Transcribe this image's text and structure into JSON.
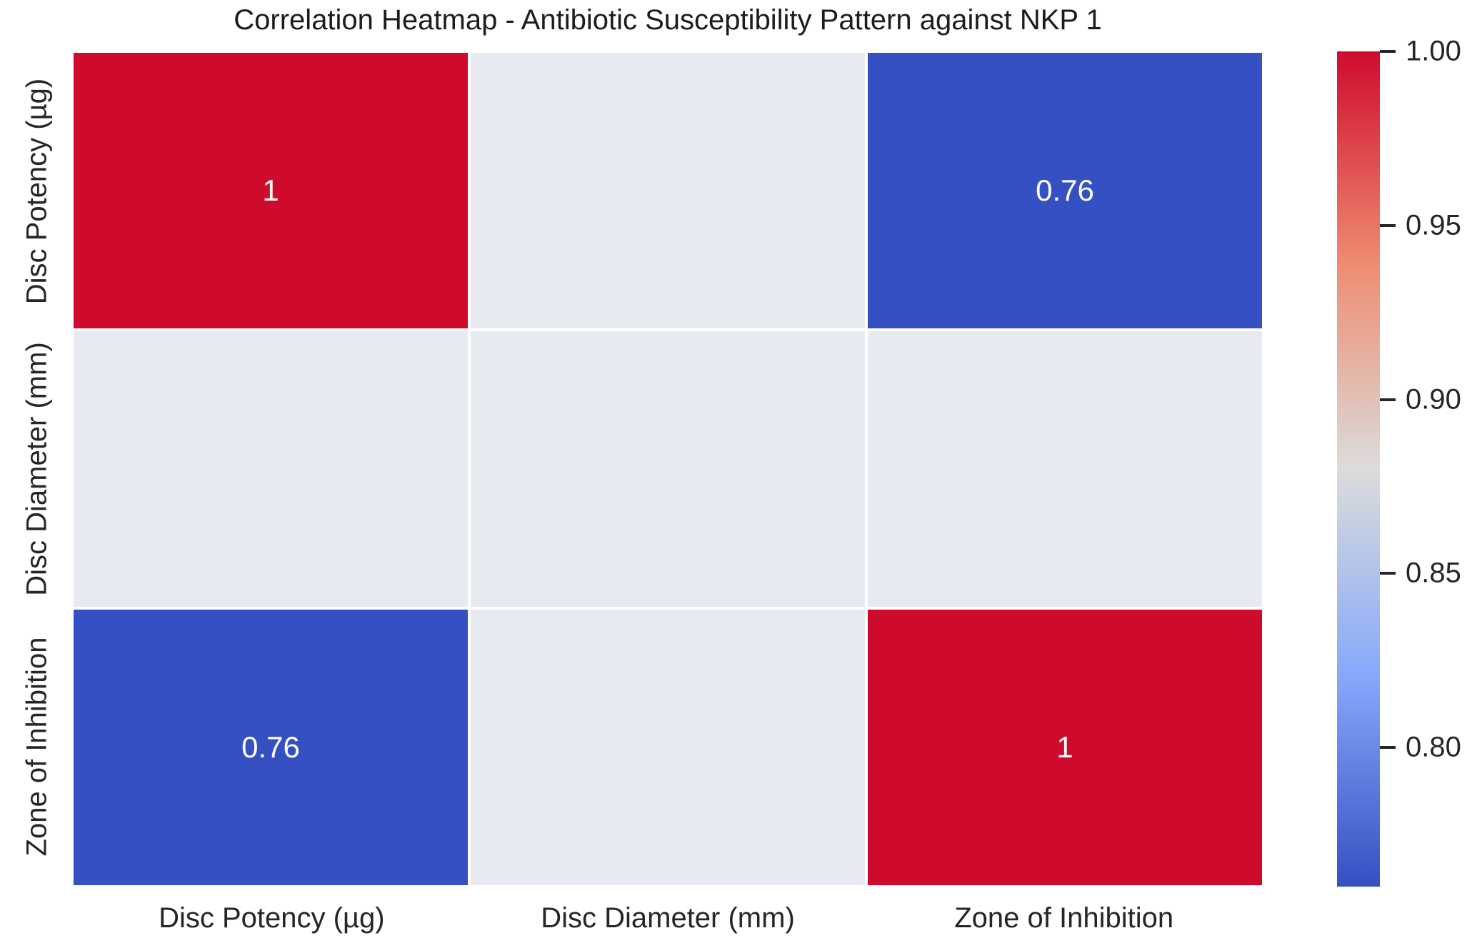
{
  "chart_data": {
    "type": "heatmap",
    "title": "Correlation Heatmap - Antibiotic Susceptibility Pattern against NKP 1",
    "x_categories": [
      "Disc Potency (µg)",
      "Disc Diameter (mm)",
      "Zone of Inhibition"
    ],
    "y_categories": [
      "Disc Potency (µg)",
      "Disc Diameter (mm)",
      "Zone of Inhibition"
    ],
    "matrix": [
      [
        1,
        null,
        0.76
      ],
      [
        null,
        null,
        null
      ],
      [
        0.76,
        null,
        1
      ]
    ],
    "cell_labels": [
      [
        "1",
        "",
        "0.76"
      ],
      [
        "",
        "",
        ""
      ],
      [
        "0.76",
        "",
        "1"
      ]
    ],
    "colormap": "coolwarm",
    "vmin": 0.76,
    "vmax": 1.0,
    "colorbar_ticks": [
      {
        "label": "1.00",
        "value": 1.0
      },
      {
        "label": "0.95",
        "value": 0.95
      },
      {
        "label": "0.90",
        "value": 0.9
      },
      {
        "label": "0.85",
        "value": 0.85
      },
      {
        "label": "0.80",
        "value": 0.8
      }
    ],
    "legend_position": "right",
    "grid": false,
    "colors": {
      "max_red": "#cf0b2d",
      "min_blue": "#3550c2",
      "nan_cell": "#e8eaf2",
      "annotation_text": "#ffffff",
      "label_text": "#262626",
      "gradient_top_to_bottom": [
        "#cf0b2d",
        "#ee8a70",
        "#dcdcda",
        "#85a8fb",
        "#3550c2"
      ]
    }
  }
}
